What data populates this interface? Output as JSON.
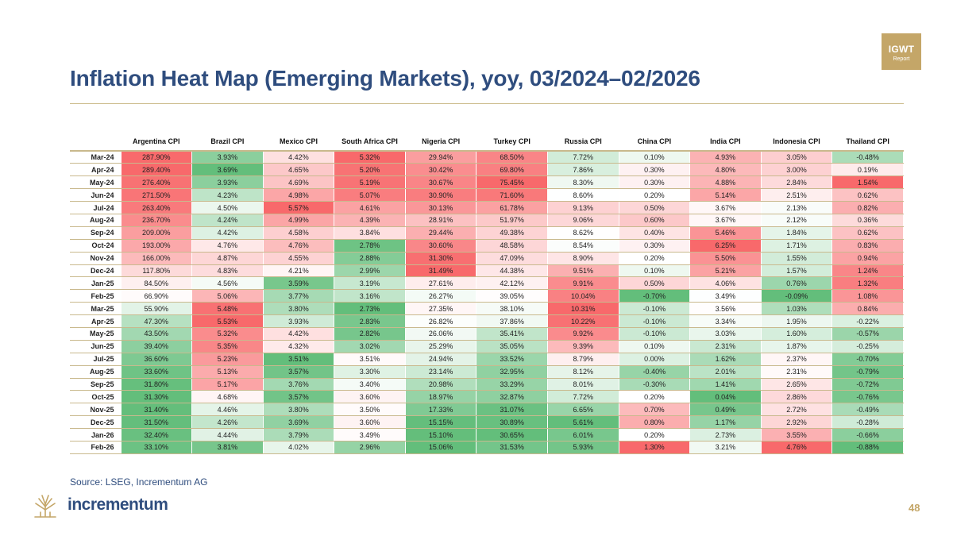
{
  "header": {
    "title": "Inflation Heat Map (Emerging Markets), yoy, 03/2024–02/2026",
    "badge_line1": "IGWT",
    "badge_line2": "Report"
  },
  "footer": {
    "source": "Source: LSEG, Incrementum AG",
    "logo_text": "incrementum",
    "page_number": "48"
  },
  "colors": {
    "title": "#2f4d7e",
    "gold": "#c4a668",
    "heat_high": "#f8696b",
    "heat_mid": "#ffffff",
    "heat_low": "#63be7b"
  },
  "chart_data": {
    "type": "heatmap",
    "title": "Inflation Heat Map (Emerging Markets), yoy, 03/2024–02/2026",
    "color_scale": "per-column, red = high, white = middle, green = low",
    "columns": [
      "Argentina CPI",
      "Brazil CPI",
      "Mexico CPI",
      "South Africa CPI",
      "Nigeria CPI",
      "Turkey CPI",
      "Russia CPI",
      "China CPI",
      "India CPI",
      "Indonesia CPI",
      "Thailand CPI"
    ],
    "rows": [
      {
        "label": "Mar-24",
        "values": [
          "287.90%",
          "3.93%",
          "4.42%",
          "5.32%",
          "29.94%",
          "68.50%",
          "7.72%",
          "0.10%",
          "4.93%",
          "3.05%",
          "-0.48%"
        ]
      },
      {
        "label": "Apr-24",
        "values": [
          "289.40%",
          "3.69%",
          "4.65%",
          "5.20%",
          "30.42%",
          "69.80%",
          "7.86%",
          "0.30%",
          "4.80%",
          "3.00%",
          "0.19%"
        ]
      },
      {
        "label": "May-24",
        "values": [
          "276.40%",
          "3.93%",
          "4.69%",
          "5.19%",
          "30.67%",
          "75.45%",
          "8.30%",
          "0.30%",
          "4.88%",
          "2.84%",
          "1.54%"
        ]
      },
      {
        "label": "Jun-24",
        "values": [
          "271.50%",
          "4.23%",
          "4.98%",
          "5.07%",
          "30.90%",
          "71.60%",
          "8.60%",
          "0.20%",
          "5.14%",
          "2.51%",
          "0.62%"
        ]
      },
      {
        "label": "Jul-24",
        "values": [
          "263.40%",
          "4.50%",
          "5.57%",
          "4.61%",
          "30.13%",
          "61.78%",
          "9.13%",
          "0.50%",
          "3.67%",
          "2.13%",
          "0.82%"
        ]
      },
      {
        "label": "Aug-24",
        "values": [
          "236.70%",
          "4.24%",
          "4.99%",
          "4.39%",
          "28.91%",
          "51.97%",
          "9.06%",
          "0.60%",
          "3.67%",
          "2.12%",
          "0.36%"
        ]
      },
      {
        "label": "Sep-24",
        "values": [
          "209.00%",
          "4.42%",
          "4.58%",
          "3.84%",
          "29.44%",
          "49.38%",
          "8.62%",
          "0.40%",
          "5.46%",
          "1.84%",
          "0.62%"
        ]
      },
      {
        "label": "Oct-24",
        "values": [
          "193.00%",
          "4.76%",
          "4.76%",
          "2.78%",
          "30.60%",
          "48.58%",
          "8.54%",
          "0.30%",
          "6.25%",
          "1.71%",
          "0.83%"
        ]
      },
      {
        "label": "Nov-24",
        "values": [
          "166.00%",
          "4.87%",
          "4.55%",
          "2.88%",
          "31.30%",
          "47.09%",
          "8.90%",
          "0.20%",
          "5.50%",
          "1.55%",
          "0.94%"
        ]
      },
      {
        "label": "Dec-24",
        "values": [
          "117.80%",
          "4.83%",
          "4.21%",
          "2.99%",
          "31.49%",
          "44.38%",
          "9.51%",
          "0.10%",
          "5.21%",
          "1.57%",
          "1.24%"
        ]
      },
      {
        "label": "Jan-25",
        "values": [
          "84.50%",
          "4.56%",
          "3.59%",
          "3.19%",
          "27.61%",
          "42.12%",
          "9.91%",
          "0.50%",
          "4.06%",
          "0.76%",
          "1.32%"
        ]
      },
      {
        "label": "Feb-25",
        "values": [
          "66.90%",
          "5.06%",
          "3.77%",
          "3.16%",
          "26.27%",
          "39.05%",
          "10.04%",
          "-0.70%",
          "3.49%",
          "-0.09%",
          "1.08%"
        ]
      },
      {
        "label": "Mar-25",
        "values": [
          "55.90%",
          "5.48%",
          "3.80%",
          "2.73%",
          "27.35%",
          "38.10%",
          "10.31%",
          "-0.10%",
          "3.56%",
          "1.03%",
          "0.84%"
        ]
      },
      {
        "label": "Apr-25",
        "values": [
          "47.30%",
          "5.53%",
          "3.93%",
          "2.83%",
          "26.82%",
          "37.86%",
          "10.22%",
          "-0.10%",
          "3.34%",
          "1.95%",
          "-0.22%"
        ]
      },
      {
        "label": "May-25",
        "values": [
          "43.50%",
          "5.32%",
          "4.42%",
          "2.82%",
          "26.06%",
          "35.41%",
          "9.92%",
          "-0.10%",
          "3.03%",
          "1.60%",
          "-0.57%"
        ]
      },
      {
        "label": "Jun-25",
        "values": [
          "39.40%",
          "5.35%",
          "4.32%",
          "3.02%",
          "25.29%",
          "35.05%",
          "9.39%",
          "0.10%",
          "2.31%",
          "1.87%",
          "-0.25%"
        ]
      },
      {
        "label": "Jul-25",
        "values": [
          "36.60%",
          "5.23%",
          "3.51%",
          "3.51%",
          "24.94%",
          "33.52%",
          "8.79%",
          "0.00%",
          "1.62%",
          "2.37%",
          "-0.70%"
        ]
      },
      {
        "label": "Aug-25",
        "values": [
          "33.60%",
          "5.13%",
          "3.57%",
          "3.30%",
          "23.14%",
          "32.95%",
          "8.12%",
          "-0.40%",
          "2.01%",
          "2.31%",
          "-0.79%"
        ]
      },
      {
        "label": "Sep-25",
        "values": [
          "31.80%",
          "5.17%",
          "3.76%",
          "3.40%",
          "20.98%",
          "33.29%",
          "8.01%",
          "-0.30%",
          "1.41%",
          "2.65%",
          "-0.72%"
        ]
      },
      {
        "label": "Oct-25",
        "values": [
          "31.30%",
          "4.68%",
          "3.57%",
          "3.60%",
          "18.97%",
          "32.87%",
          "7.72%",
          "0.20%",
          "0.04%",
          "2.86%",
          "-0.76%"
        ]
      },
      {
        "label": "Nov-25",
        "values": [
          "31.40%",
          "4.46%",
          "3.80%",
          "3.50%",
          "17.33%",
          "31.07%",
          "6.65%",
          "0.70%",
          "0.49%",
          "2.72%",
          "-0.49%"
        ]
      },
      {
        "label": "Dec-25",
        "values": [
          "31.50%",
          "4.26%",
          "3.69%",
          "3.60%",
          "15.15%",
          "30.89%",
          "5.61%",
          "0.80%",
          "1.17%",
          "2.92%",
          "-0.28%"
        ]
      },
      {
        "label": "Jan-26",
        "values": [
          "32.40%",
          "4.44%",
          "3.79%",
          "3.49%",
          "15.10%",
          "30.65%",
          "6.01%",
          "0.20%",
          "2.73%",
          "3.55%",
          "-0.66%"
        ]
      },
      {
        "label": "Feb-26",
        "values": [
          "33.10%",
          "3.81%",
          "4.02%",
          "2.96%",
          "15.06%",
          "31.53%",
          "5.93%",
          "1.30%",
          "3.21%",
          "4.76%",
          "-0.88%"
        ]
      }
    ]
  }
}
